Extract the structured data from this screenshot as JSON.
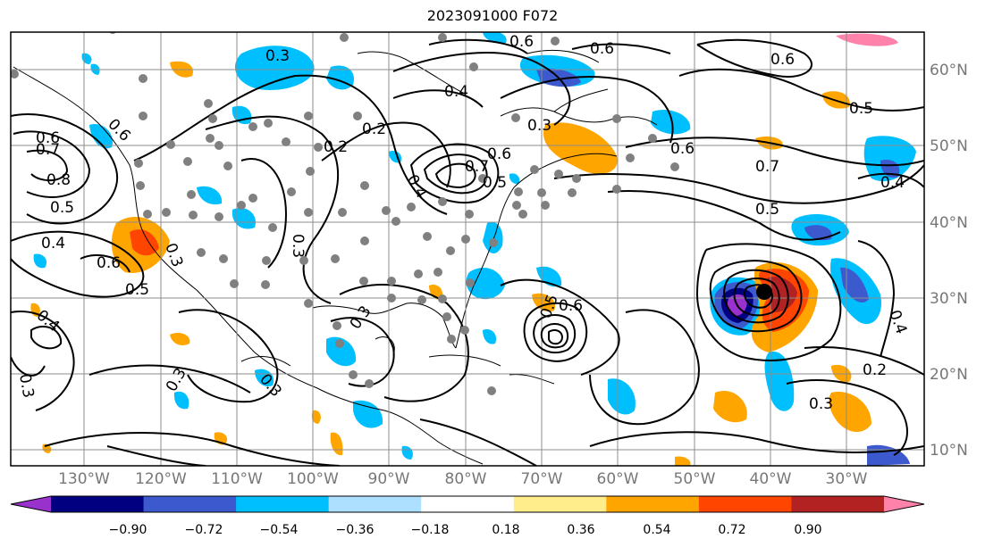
{
  "title": "2023091000 F072",
  "axes": {
    "lon_labels": [
      "130°W",
      "120°W",
      "110°W",
      "100°W",
      "90°W",
      "80°W",
      "70°W",
      "60°W",
      "50°W",
      "40°W",
      "30°W"
    ],
    "lat_labels": [
      "60°N",
      "50°N",
      "40°N",
      "30°N",
      "20°N",
      "10°N"
    ]
  },
  "colorbar": {
    "tick_labels": [
      "−0.90",
      "−0.72",
      "−0.54",
      "−0.36",
      "−0.18",
      "0.18",
      "0.36",
      "0.54",
      "0.72",
      "0.90"
    ],
    "colors": [
      "#9932CC",
      "#000080",
      "#3C5ACD",
      "#00BFFF",
      "#ADDFFF",
      "#FFFFFF",
      "#FFEC8B",
      "#FFA500",
      "#FF4500",
      "#B22222",
      "#FF82AB"
    ]
  },
  "contour_labels": [
    "0.3",
    "0.6",
    "0.6",
    "0.6",
    "0.5",
    "0.4",
    "0.2",
    "0.2",
    "0.3",
    "0.6",
    "0.6",
    "0.7",
    "0.8",
    "0.5",
    "0.4",
    "0.6",
    "0.5",
    "0.3",
    "0.7",
    "0.5",
    "0.6",
    "0.7",
    "0.5",
    "0.4",
    "0.4",
    "0.3",
    "0.3",
    "0.3",
    "0.4",
    "0.3",
    "0.2",
    "0.3",
    "0.5",
    "0.6",
    "0.4",
    "0.3",
    "0.6"
  ]
}
